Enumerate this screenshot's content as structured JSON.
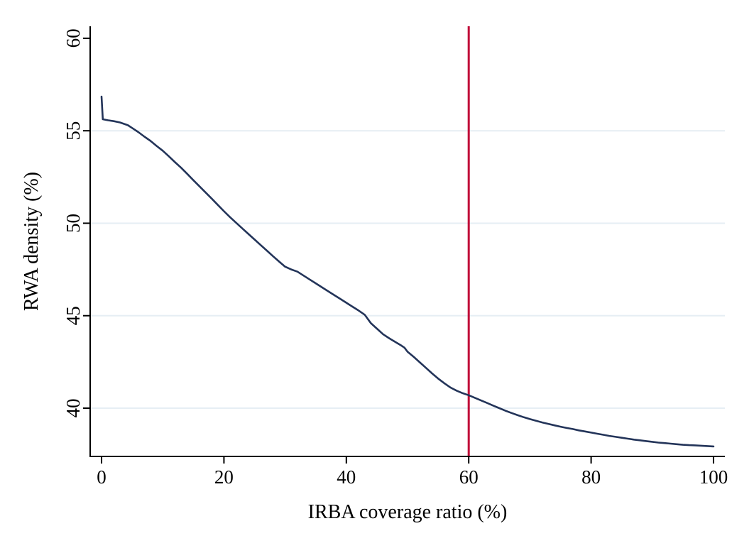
{
  "figure": {
    "background": "#ffffff"
  },
  "chart_data": {
    "type": "line",
    "title": "",
    "xlabel": "IRBA coverage ratio (%)",
    "ylabel": "RWA density (%)",
    "xlim": [
      -1.86,
      101.86
    ],
    "ylim": [
      37.39,
      60.65
    ],
    "x_ticks": [
      0,
      20,
      40,
      60,
      80,
      100
    ],
    "y_ticks": [
      40,
      45,
      50,
      55,
      60
    ],
    "gridline_y_values": [
      40,
      45,
      50,
      55
    ],
    "grid": "horizontal-light",
    "legend": "none",
    "colors": {
      "line": "#233459",
      "reference_line": "#c00838",
      "grid": "#e6eef4",
      "axis": "#000000",
      "background": "#ffffff"
    },
    "reference_line": {
      "axis": "x",
      "value": 60
    },
    "series": [
      {
        "name": "RWA density vs IRBA coverage ratio",
        "points": [
          [
            0,
            56.85
          ],
          [
            0.2,
            55.62
          ],
          [
            1,
            55.57
          ],
          [
            2,
            55.52
          ],
          [
            3,
            55.45
          ],
          [
            4.3,
            55.3
          ],
          [
            5,
            55.15
          ],
          [
            6,
            54.93
          ],
          [
            7,
            54.68
          ],
          [
            8,
            54.45
          ],
          [
            9,
            54.18
          ],
          [
            10,
            53.92
          ],
          [
            11,
            53.62
          ],
          [
            12,
            53.3
          ],
          [
            13,
            53.0
          ],
          [
            14,
            52.67
          ],
          [
            15,
            52.33
          ],
          [
            16,
            52.0
          ],
          [
            17,
            51.66
          ],
          [
            18,
            51.33
          ],
          [
            19,
            50.99
          ],
          [
            20,
            50.65
          ],
          [
            21,
            50.33
          ],
          [
            22,
            50.02
          ],
          [
            23,
            49.72
          ],
          [
            24,
            49.42
          ],
          [
            25,
            49.12
          ],
          [
            26,
            48.82
          ],
          [
            27,
            48.52
          ],
          [
            28,
            48.22
          ],
          [
            29,
            47.93
          ],
          [
            30,
            47.65
          ],
          [
            31,
            47.5
          ],
          [
            32,
            47.38
          ],
          [
            33,
            47.17
          ],
          [
            34,
            46.96
          ],
          [
            35,
            46.75
          ],
          [
            36,
            46.54
          ],
          [
            37,
            46.33
          ],
          [
            38,
            46.12
          ],
          [
            39,
            45.91
          ],
          [
            40,
            45.7
          ],
          [
            41,
            45.49
          ],
          [
            42,
            45.28
          ],
          [
            43,
            45.05
          ],
          [
            44,
            44.6
          ],
          [
            44.5,
            44.45
          ],
          [
            45,
            44.3
          ],
          [
            46,
            44.0
          ],
          [
            47,
            43.78
          ],
          [
            48,
            43.58
          ],
          [
            49,
            43.38
          ],
          [
            49.5,
            43.27
          ],
          [
            50,
            43.05
          ],
          [
            51,
            42.78
          ],
          [
            52,
            42.48
          ],
          [
            53,
            42.18
          ],
          [
            54,
            41.88
          ],
          [
            55,
            41.6
          ],
          [
            56,
            41.35
          ],
          [
            57,
            41.12
          ],
          [
            58,
            40.95
          ],
          [
            59,
            40.81
          ],
          [
            60,
            40.7
          ],
          [
            61,
            40.56
          ],
          [
            62,
            40.42
          ],
          [
            63,
            40.28
          ],
          [
            64,
            40.14
          ],
          [
            65,
            40.0
          ],
          [
            66,
            39.86
          ],
          [
            67,
            39.74
          ],
          [
            68,
            39.62
          ],
          [
            69,
            39.51
          ],
          [
            70,
            39.41
          ],
          [
            71,
            39.32
          ],
          [
            72,
            39.23
          ],
          [
            73,
            39.15
          ],
          [
            74,
            39.07
          ],
          [
            75,
            39.0
          ],
          [
            76,
            38.93
          ],
          [
            77,
            38.87
          ],
          [
            78,
            38.8
          ],
          [
            79,
            38.74
          ],
          [
            80,
            38.68
          ],
          [
            81,
            38.62
          ],
          [
            82,
            38.56
          ],
          [
            83,
            38.5
          ],
          [
            84,
            38.45
          ],
          [
            85,
            38.4
          ],
          [
            86,
            38.35
          ],
          [
            87,
            38.3
          ],
          [
            88,
            38.26
          ],
          [
            89,
            38.22
          ],
          [
            90,
            38.18
          ],
          [
            91,
            38.14
          ],
          [
            92,
            38.11
          ],
          [
            93,
            38.08
          ],
          [
            94,
            38.05
          ],
          [
            95,
            38.02
          ],
          [
            96,
            38.0
          ],
          [
            97,
            37.99
          ],
          [
            98,
            37.97
          ],
          [
            99,
            37.95
          ],
          [
            100,
            37.93
          ]
        ]
      }
    ]
  }
}
